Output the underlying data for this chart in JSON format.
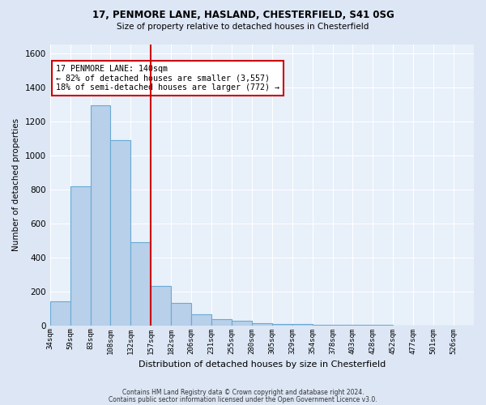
{
  "title1": "17, PENMORE LANE, HASLAND, CHESTERFIELD, S41 0SG",
  "title2": "Size of property relative to detached houses in Chesterfield",
  "xlabel": "Distribution of detached houses by size in Chesterfield",
  "ylabel": "Number of detached properties",
  "footer1": "Contains HM Land Registry data © Crown copyright and database right 2024.",
  "footer2": "Contains public sector information licensed under the Open Government Licence v3.0.",
  "categories": [
    "34sqm",
    "59sqm",
    "83sqm",
    "108sqm",
    "132sqm",
    "157sqm",
    "182sqm",
    "206sqm",
    "231sqm",
    "255sqm",
    "280sqm",
    "305sqm",
    "329sqm",
    "354sqm",
    "378sqm",
    "403sqm",
    "428sqm",
    "452sqm",
    "477sqm",
    "501sqm",
    "526sqm"
  ],
  "values": [
    140,
    815,
    1295,
    1090,
    490,
    230,
    130,
    65,
    38,
    26,
    14,
    10,
    6,
    3,
    2,
    1,
    1,
    0,
    0,
    0,
    0
  ],
  "bar_color": "#b8d0ea",
  "bar_edgecolor": "#6aaad4",
  "vline_color": "#cc0000",
  "vline_x_index": 5,
  "annotation_text": "17 PENMORE LANE: 140sqm\n← 82% of detached houses are smaller (3,557)\n18% of semi-detached houses are larger (772) →",
  "annotation_box_color": "white",
  "annotation_box_edgecolor": "#cc0000",
  "ylim": [
    0,
    1650
  ],
  "yticks": [
    0,
    200,
    400,
    600,
    800,
    1000,
    1200,
    1400,
    1600
  ],
  "bg_color": "#dce6f5",
  "axes_bg_color": "#e8f0fa"
}
